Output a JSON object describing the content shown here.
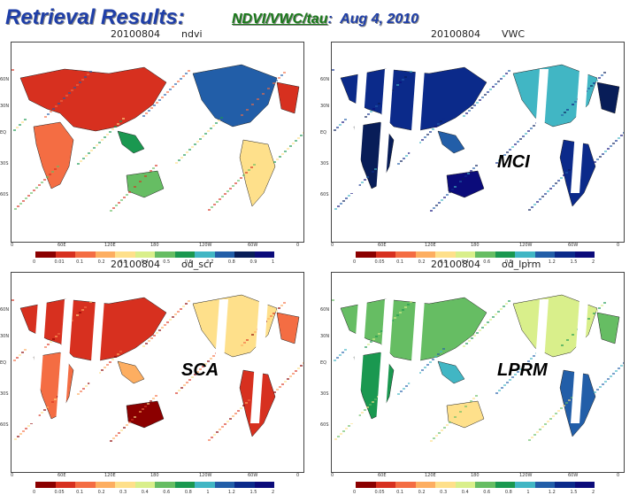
{
  "header": {
    "title": "Retrieval Results:",
    "subtitle_prefix": "NDVI/VWC/tau",
    "subtitle_sep": ":",
    "subtitle_date": "Aug 4, 2010"
  },
  "panels": [
    {
      "date": "20100804",
      "var": "ndvi",
      "overlay": "",
      "colorbar": [
        "0",
        "0.01",
        "0.1",
        "0.2",
        "0.3",
        "0.4",
        "0.5",
        "0.6",
        "0.7",
        "0.8",
        "0.9",
        "1"
      ],
      "colors": [
        "#8b0000",
        "#d7301f",
        "#f46d43",
        "#fdae61",
        "#fee08b",
        "#d9ef8b",
        "#66bd63",
        "#1a9850",
        "#41b6c4",
        "#225ea8",
        "#081d58",
        "#0b0b7a"
      ]
    },
    {
      "date": "20100804",
      "var": "VWC",
      "overlay": "MCI",
      "colorbar": [
        "0",
        "0.05",
        "0.1",
        "0.2",
        "0.3",
        "0.4",
        "0.6",
        "0.8",
        "1",
        "1.2",
        "1.5",
        "2"
      ],
      "colors": [
        "#8b0000",
        "#d7301f",
        "#f46d43",
        "#fdae61",
        "#fee08b",
        "#d9ef8b",
        "#66bd63",
        "#1a9850",
        "#41b6c4",
        "#225ea8",
        "#0b2a8a",
        "#0b0b7a"
      ]
    },
    {
      "date": "20100804",
      "var": "od_scr",
      "overlay": "SCA",
      "colorbar": [
        "0",
        "0.05",
        "0.1",
        "0.2",
        "0.3",
        "0.4",
        "0.6",
        "0.8",
        "1",
        "1.2",
        "1.5",
        "2"
      ],
      "colors": [
        "#8b0000",
        "#d7301f",
        "#f46d43",
        "#fdae61",
        "#fee08b",
        "#d9ef8b",
        "#66bd63",
        "#1a9850",
        "#41b6c4",
        "#225ea8",
        "#0b2a8a",
        "#0b0b7a"
      ]
    },
    {
      "date": "20100804",
      "var": "od_lprm",
      "overlay": "LPRM",
      "colorbar": [
        "0",
        "0.05",
        "0.1",
        "0.2",
        "0.3",
        "0.4",
        "0.6",
        "0.8",
        "1",
        "1.2",
        "1.5",
        "2"
      ],
      "colors": [
        "#8b0000",
        "#d7301f",
        "#f46d43",
        "#fdae61",
        "#fee08b",
        "#d9ef8b",
        "#66bd63",
        "#1a9850",
        "#41b6c4",
        "#225ea8",
        "#0b2a8a",
        "#0b0b7a"
      ]
    }
  ],
  "axes": {
    "lat_labels": [
      "60N",
      "30N",
      "EQ",
      "30S",
      "60S"
    ],
    "lon_labels": [
      "0",
      "60E",
      "120E",
      "180",
      "120W",
      "60W",
      "0"
    ]
  }
}
